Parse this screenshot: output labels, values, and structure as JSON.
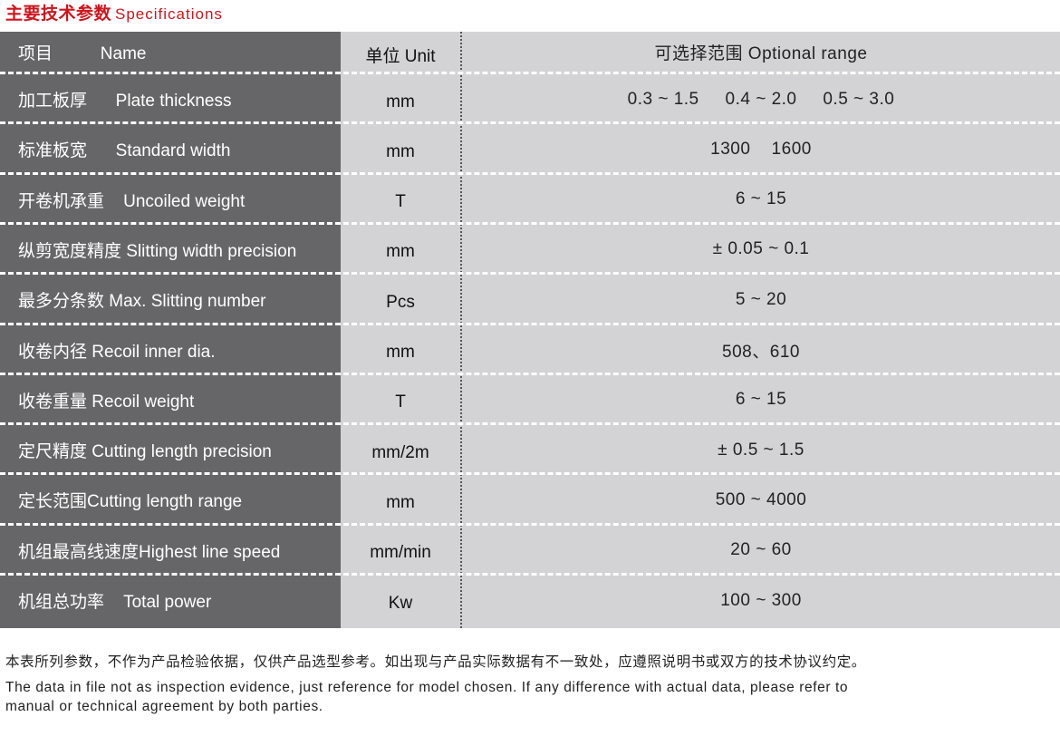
{
  "title": {
    "zh": "主要技术参数",
    "en": "Specifications"
  },
  "header": {
    "name": "项目          Name",
    "unit": "单位 Unit",
    "range": "可选择范围 Optional range"
  },
  "rows": [
    {
      "name": "加工板厚      Plate thickness",
      "unit": "mm",
      "range": "0.3 ~ 1.5     0.4 ~ 2.0     0.5 ~ 3.0"
    },
    {
      "name": "标准板宽      Standard width",
      "unit": "mm",
      "range": "1300    1600"
    },
    {
      "name": "开卷机承重    Uncoiled weight",
      "unit": "T",
      "range": "6 ~ 15"
    },
    {
      "name": "纵剪宽度精度 Slitting width precision",
      "unit": "mm",
      "range": "± 0.05 ~ 0.1"
    },
    {
      "name": "最多分条数 Max. Slitting number",
      "unit": "Pcs",
      "range": "5 ~ 20"
    },
    {
      "name": "收卷内径 Recoil inner dia.",
      "unit": "mm",
      "range": "508、610"
    },
    {
      "name": "收卷重量 Recoil weight",
      "unit": "T",
      "range": "6 ~ 15"
    },
    {
      "name": "定尺精度 Cutting length precision",
      "unit": "mm/2m",
      "range": "± 0.5 ~ 1.5"
    },
    {
      "name": "定长范围Cutting length range",
      "unit": "mm",
      "range": "500 ~ 4000"
    },
    {
      "name": "机组最高线速度Highest line speed",
      "unit": "mm/min",
      "range": "20 ~ 60"
    },
    {
      "name": "机组总功率    Total power",
      "unit": "Kw",
      "range": "100 ~ 300"
    }
  ],
  "footer": {
    "zh": "本表所列参数，不作为产品检验依据，仅供产品选型参考。如出现与产品实际数据有不一致处，应遵照说明书或双方的技术协议约定。",
    "en1": "The data in file not as inspection evidence, just reference for model chosen. If any difference with actual data, please refer to",
    "en2": "manual or technical agreement by both parties."
  },
  "colors": {
    "title": "#d0141c",
    "dark_column": "#666668",
    "light_column": "#d3d3d5"
  }
}
